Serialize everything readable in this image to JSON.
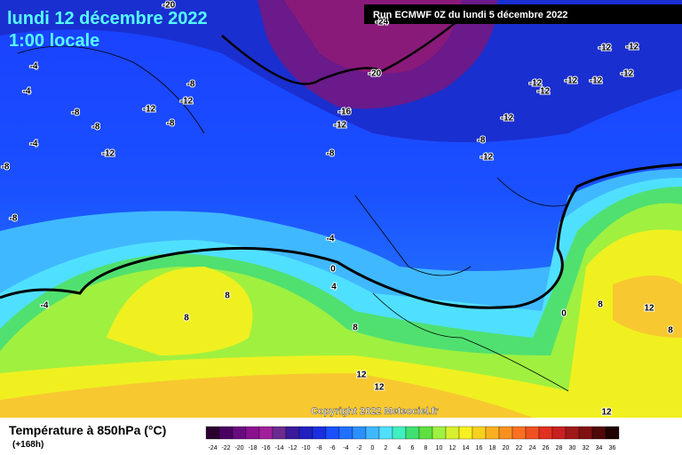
{
  "header": {
    "date": "lundi 12 décembre 2022",
    "time": "1:00 locale",
    "run": "Run ECMWF 0Z du lundi 5 décembre 2022"
  },
  "copyright": "Copyright 2022 Meteociel.fr",
  "footer": {
    "title": "Température à 850hPa (°C)",
    "lead": "(+168h)"
  },
  "contour_labels": [
    -20,
    -24,
    -20,
    -4,
    -4,
    -8,
    -12,
    -12,
    -8,
    -8,
    -8,
    -4,
    -12,
    -16,
    -12,
    -8,
    -8,
    -8,
    -4,
    0,
    4,
    -4,
    8,
    8,
    8,
    12,
    12,
    -12,
    -12,
    -12,
    -12,
    -12,
    -12,
    -12,
    -12,
    -8,
    -12,
    0,
    8,
    12,
    8,
    12
  ],
  "scale": {
    "values": [
      -24,
      -22,
      -20,
      -18,
      -16,
      -14,
      -12,
      -10,
      -8,
      -6,
      -4,
      -2,
      0,
      2,
      4,
      6,
      8,
      10,
      12,
      14,
      16,
      18,
      20,
      22,
      24,
      26,
      28,
      30,
      32,
      34,
      36
    ],
    "colors": [
      "#2b0030",
      "#4a0060",
      "#6a0a80",
      "#8a1090",
      "#a0209a",
      "#6a2a90",
      "#3a1a9a",
      "#2020c0",
      "#1a30e0",
      "#1a50ff",
      "#2070ff",
      "#2a90ff",
      "#40b8ff",
      "#50e0ff",
      "#40f0c0",
      "#40e070",
      "#60e040",
      "#a0f040",
      "#d8f030",
      "#f8f020",
      "#f8d020",
      "#f8b020",
      "#f89020",
      "#f87020",
      "#f05020",
      "#e03020",
      "#c82020",
      "#a01818",
      "#801010",
      "#500808",
      "#200000"
    ]
  }
}
